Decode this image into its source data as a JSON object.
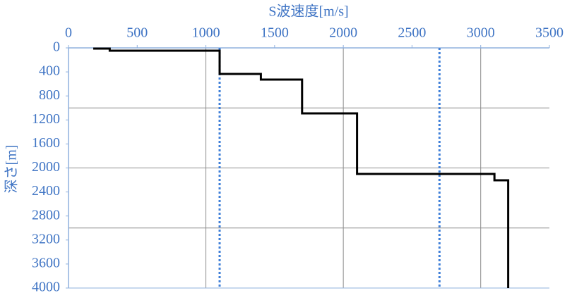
{
  "chart_data": {
    "type": "line",
    "title": "S波速度[m/s]",
    "y_label": "深さ[m]",
    "xlim": [
      0,
      3500
    ],
    "xticks": [
      0,
      500,
      1000,
      1500,
      2000,
      2500,
      3000,
      3500
    ],
    "ylim": [
      0,
      4000
    ],
    "yticks": [
      0,
      400,
      800,
      1200,
      1600,
      2000,
      2400,
      2800,
      3200,
      3600,
      4000
    ],
    "y_reversed": true,
    "xgrid": [
      1000,
      2000,
      3000
    ],
    "ygrid": [
      1000,
      2000,
      3000
    ],
    "series": [
      {
        "color": "#000000",
        "x": [
          180,
          300,
          300,
          1100,
          1100,
          1400,
          1400,
          1700,
          1700,
          2100,
          2100,
          3100,
          3100,
          3200,
          3200
        ],
        "y": [
          12,
          12,
          47,
          47,
          434,
          434,
          528,
          528,
          1091,
          1091,
          2100,
          2100,
          2205,
          2205,
          4000
        ]
      }
    ],
    "reference_lines": [
      {
        "value": 1100,
        "color": "#3f7fd8"
      },
      {
        "value": 2700,
        "color": "#3f7fd8"
      }
    ]
  }
}
